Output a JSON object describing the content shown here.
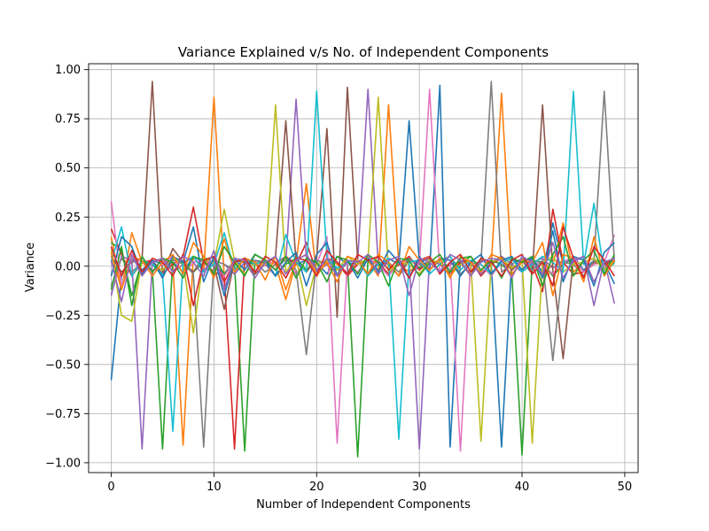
{
  "chart_data": {
    "type": "line",
    "title": "Variance Explained v/s No. of Independent Components",
    "xlabel": "Number of Independent Components",
    "ylabel": "Variance",
    "xlim": [
      -2.2,
      51.3
    ],
    "ylim": [
      -1.05,
      1.03
    ],
    "xticks": [
      0,
      10,
      20,
      30,
      40,
      50
    ],
    "yticks": [
      1.0,
      0.75,
      0.5,
      0.25,
      0.0,
      -0.25,
      -0.5,
      -0.75,
      -1.0
    ],
    "ytick_labels": [
      "1.00",
      "0.75",
      "0.50",
      "0.25",
      "0.00",
      "−0.25",
      "−0.50",
      "−0.75",
      "−1.00"
    ],
    "grid": true,
    "colors": [
      "#1f77b4",
      "#ff7f0e",
      "#2ca02c",
      "#d62728",
      "#9467bd",
      "#8c564b",
      "#e377c2",
      "#7f7f7f",
      "#bcbd22",
      "#17becf"
    ],
    "x": [
      0,
      1,
      2,
      3,
      4,
      5,
      6,
      7,
      8,
      9,
      10,
      11,
      12,
      13,
      14,
      15,
      16,
      17,
      18,
      19,
      20,
      21,
      22,
      23,
      24,
      25,
      26,
      27,
      28,
      29,
      30,
      31,
      32,
      33,
      34,
      35,
      36,
      37,
      38,
      39,
      40,
      41,
      42,
      43,
      44,
      45,
      46,
      47,
      48,
      49
    ],
    "series": [
      {
        "values": [
          -0.58,
          -0.05,
          0.04,
          -0.02,
          0.03,
          0.01,
          0.02,
          -0.03,
          0.05,
          0.02,
          0.01,
          -0.04,
          0.03,
          0.02,
          0.01,
          0.03,
          -0.02,
          0.04,
          0.01,
          0.03,
          0.02,
          -0.04,
          0.05,
          0.01,
          0.02,
          0.03,
          -0.02,
          0.04,
          0.01,
          0.74,
          0.02,
          -0.03,
          0.92,
          -0.92,
          0.03,
          0.02,
          -0.04,
          0.01,
          -0.92,
          0.03,
          0.02,
          0.04,
          -0.03,
          0.22,
          0.01,
          0.05,
          -0.02,
          0.03,
          0.02,
          -0.09
        ]
      },
      {
        "values": [
          0.15,
          -0.12,
          0.17,
          0.02,
          -0.03,
          0.04,
          0.01,
          -0.91,
          0.05,
          -0.03,
          0.86,
          -0.05,
          0.03,
          0.02,
          -0.04,
          0.03,
          0.01,
          -0.17,
          0.02,
          0.42,
          -0.05,
          0.03,
          0.01,
          -0.04,
          0.02,
          0.03,
          -0.05,
          0.82,
          0.01,
          -0.03,
          0.02,
          0.04,
          -0.03,
          0.01,
          0.02,
          -0.05,
          0.03,
          0.01,
          0.88,
          -0.04,
          0.02,
          0.03,
          -0.05,
          0.01,
          0.22,
          -0.03,
          0.02,
          0.04,
          -0.01,
          0.05
        ]
      },
      {
        "values": [
          0.12,
          0.08,
          -0.15,
          0.03,
          -0.02,
          -0.93,
          0.04,
          0.01,
          -0.03,
          0.02,
          0.05,
          -0.04,
          0.01,
          -0.94,
          0.03,
          0.02,
          -0.05,
          0.01,
          0.04,
          -0.02,
          0.03,
          0.01,
          -0.04,
          0.02,
          -0.97,
          0.03,
          0.01,
          -0.05,
          0.02,
          0.04,
          -0.01,
          0.03,
          0.02,
          -0.04,
          0.01,
          0.05,
          -0.02,
          0.03,
          0.01,
          -0.04,
          -0.96,
          0.03,
          0.02,
          -0.05,
          0.01,
          0.04,
          -0.03,
          0.02,
          0.03,
          0.01
        ]
      },
      {
        "values": [
          0.19,
          0.06,
          -0.05,
          0.02,
          0.03,
          -0.04,
          0.01,
          0.05,
          0.3,
          0.02,
          -0.03,
          -0.05,
          -0.93,
          0.04,
          0.01,
          0.03,
          -0.02,
          0.05,
          0.01,
          0.12,
          -0.03,
          0.04,
          0.02,
          -0.05,
          0.01,
          0.03,
          0.02,
          -0.04,
          0.01,
          0.05,
          -0.02,
          0.03,
          0.01,
          -0.04,
          0.02,
          0.03,
          -0.05,
          0.01,
          0.04,
          -0.02,
          0.03,
          0.01,
          -0.13,
          0.29,
          0.02,
          -0.04,
          -0.03,
          0.01,
          0.02,
          0.03
        ]
      },
      {
        "values": [
          -0.15,
          0.05,
          0.03,
          -0.93,
          0.02,
          0.04,
          -0.03,
          0.01,
          0.05,
          -0.02,
          0.03,
          0.01,
          -0.04,
          0.02,
          0.03,
          0.01,
          -0.05,
          0.02,
          0.85,
          0.04,
          -0.03,
          0.01,
          0.02,
          -0.04,
          0.03,
          0.9,
          0.01,
          -0.05,
          0.02,
          0.03,
          -0.93,
          0.04,
          0.01,
          -0.02,
          0.03,
          0.01,
          -0.04,
          0.02,
          0.05,
          0.01,
          -0.03,
          0.02,
          0.04,
          -0.01,
          0.03,
          0.02,
          0.05,
          -0.2,
          0.03,
          -0.19
        ]
      },
      {
        "values": [
          0.05,
          -0.03,
          0.02,
          0.04,
          0.94,
          -0.04,
          0.09,
          0.02,
          -0.03,
          0.05,
          0.01,
          -0.22,
          0.03,
          0.02,
          -0.04,
          0.01,
          0.05,
          0.74,
          0.02,
          -0.03,
          0.04,
          0.7,
          -0.26,
          0.91,
          0.03,
          -0.04,
          0.02,
          0.01,
          -0.05,
          0.03,
          0.02,
          0.04,
          -0.03,
          0.01,
          0.02,
          -0.04,
          0.03,
          0.01,
          0.05,
          -0.02,
          0.03,
          -0.04,
          0.82,
          -0.02,
          -0.47,
          0.04,
          -0.03,
          0.02,
          0.01,
          0.03
        ]
      },
      {
        "values": [
          0.33,
          -0.1,
          0.04,
          0.02,
          -0.03,
          0.01,
          0.05,
          -0.04,
          0.02,
          0.03,
          0.01,
          -0.05,
          0.02,
          0.04,
          -0.03,
          0.01,
          0.02,
          0.05,
          -0.04,
          0.03,
          0.01,
          0.15,
          -0.9,
          0.02,
          -0.03,
          0.04,
          0.01,
          -0.05,
          0.02,
          0.03,
          0.01,
          0.9,
          -0.04,
          0.02,
          -0.94,
          0.03,
          0.01,
          -0.05,
          0.02,
          0.04,
          -0.02,
          0.03,
          0.01,
          -0.04,
          0.02,
          0.05,
          -0.03,
          0.01,
          0.02,
          0.16
        ]
      },
      {
        "values": [
          -0.1,
          0.04,
          -0.03,
          0.02,
          0.01,
          -0.05,
          0.03,
          0.02,
          -0.04,
          -0.92,
          0.03,
          0.01,
          -0.02,
          0.04,
          0.02,
          -0.03,
          0.01,
          0.05,
          -0.02,
          -0.45,
          0.03,
          0.01,
          -0.04,
          0.02,
          0.03,
          -0.05,
          0.01,
          0.02,
          -0.03,
          0.04,
          0.01,
          -0.02,
          0.03,
          0.05,
          -0.04,
          0.01,
          0.02,
          0.94,
          -0.03,
          0.01,
          0.04,
          -0.02,
          0.03,
          -0.48,
          0.02,
          0.01,
          -0.05,
          0.03,
          0.89,
          0.02
        ]
      },
      {
        "values": [
          0.08,
          -0.25,
          -0.28,
          0.03,
          0.01,
          -0.02,
          0.04,
          0.02,
          -0.34,
          0.05,
          0.01,
          0.29,
          0.03,
          -0.04,
          0.02,
          0.01,
          0.82,
          -0.03,
          0.04,
          -0.2,
          0.01,
          0.03,
          -0.02,
          0.05,
          0.01,
          0.04,
          0.86,
          -0.03,
          0.02,
          0.01,
          -0.04,
          0.03,
          0.02,
          -0.05,
          0.01,
          0.03,
          -0.89,
          0.02,
          0.04,
          -0.01,
          0.03,
          -0.9,
          0.02,
          0.05,
          -0.03,
          0.01,
          0.02,
          0.04,
          -0.02,
          0.03
        ]
      },
      {
        "values": [
          0.02,
          0.2,
          -0.05,
          0.03,
          0.01,
          -0.04,
          -0.84,
          0.02,
          0.05,
          -0.03,
          0.01,
          0.17,
          -0.02,
          0.04,
          0.01,
          0.03,
          -0.05,
          0.16,
          0.02,
          -0.03,
          0.89,
          0.04,
          -0.01,
          0.02,
          0.03,
          -0.05,
          0.01,
          0.04,
          -0.88,
          0.02,
          0.03,
          -0.04,
          0.01,
          0.05,
          -0.02,
          0.03,
          0.01,
          -0.04,
          0.02,
          0.04,
          -0.03,
          0.01,
          0.05,
          0.02,
          -0.03,
          0.89,
          0.01,
          0.32,
          -0.04,
          0.02
        ]
      },
      {
        "values": [
          -0.05,
          0.15,
          0.1,
          -0.04,
          0.03,
          -0.06,
          0.05,
          0.02,
          0.2,
          -0.08,
          0.05,
          -0.15,
          0.04,
          -0.02,
          0.06,
          0.03,
          -0.05,
          0.02,
          0.07,
          -0.1,
          0.06,
          0.12,
          -0.05,
          0.03,
          -0.06,
          0.04,
          -0.03,
          0.08,
          0.02,
          -0.06,
          0.05,
          -0.02,
          0.04,
          0.03,
          -0.05,
          0.02,
          0.06,
          -0.04,
          0.03,
          0.05,
          -0.02,
          0.04,
          -0.06,
          0.18,
          -0.08,
          0.05,
          0.03,
          -0.1,
          0.07,
          0.12
        ]
      },
      {
        "values": [
          0.07,
          -0.12,
          0.05,
          0.03,
          -0.05,
          0.02,
          0.06,
          -0.04,
          0.12,
          0.05,
          -0.06,
          0.14,
          -0.03,
          0.04,
          0.02,
          -0.07,
          0.05,
          -0.12,
          0.03,
          0.06,
          -0.04,
          0.02,
          -0.08,
          0.05,
          0.03,
          -0.04,
          0.06,
          0.02,
          -0.05,
          0.1,
          0.03,
          -0.02,
          0.04,
          -0.06,
          0.05,
          0.02,
          -0.03,
          0.06,
          0.04,
          -0.05,
          0.03,
          0.02,
          0.12,
          -0.15,
          0.06,
          0.04,
          -0.08,
          0.15,
          -0.05,
          0.03
        ]
      },
      {
        "values": [
          -0.12,
          0.1,
          -0.2,
          0.05,
          -0.03,
          0.04,
          0.02,
          -0.06,
          0.05,
          0.03,
          -0.04,
          0.1,
          0.02,
          -0.05,
          0.06,
          0.03,
          -0.02,
          0.05,
          -0.06,
          0.04,
          0.02,
          -0.08,
          0.05,
          0.03,
          -0.04,
          0.06,
          0.02,
          -0.1,
          0.04,
          0.03,
          -0.05,
          0.02,
          0.06,
          -0.03,
          0.04,
          0.05,
          -0.02,
          0.03,
          -0.06,
          0.04,
          0.02,
          0.05,
          -0.1,
          0.06,
          0.15,
          -0.05,
          0.03,
          0.08,
          -0.04,
          0.06
        ]
      },
      {
        "values": [
          0.1,
          -0.05,
          0.08,
          -0.03,
          0.04,
          0.02,
          -0.05,
          0.06,
          -0.2,
          0.03,
          0.05,
          -0.08,
          0.02,
          0.04,
          -0.03,
          0.05,
          0.02,
          -0.06,
          0.04,
          0.03,
          -0.05,
          0.08,
          0.02,
          -0.04,
          0.06,
          0.03,
          0.05,
          -0.02,
          0.04,
          -0.06,
          0.03,
          0.05,
          -0.04,
          0.02,
          0.06,
          -0.03,
          0.04,
          0.02,
          -0.05,
          0.03,
          0.06,
          -0.04,
          0.02,
          -0.1,
          0.2,
          0.04,
          -0.06,
          0.1,
          0.03,
          -0.05
        ]
      },
      {
        "values": [
          0.03,
          -0.18,
          0.06,
          -0.05,
          0.02,
          0.04,
          -0.03,
          0.05,
          0.02,
          -0.05,
          0.08,
          -0.12,
          0.04,
          0.03,
          -0.06,
          0.02,
          0.05,
          -0.04,
          0.03,
          0.06,
          -0.02,
          0.04,
          -0.05,
          0.03,
          0.02,
          0.06,
          -0.04,
          0.03,
          0.05,
          -0.15,
          0.04,
          0.02,
          -0.03,
          0.06,
          0.03,
          -0.05,
          0.02,
          0.04,
          0.03,
          -0.06,
          0.05,
          0.02,
          -0.04,
          0.12,
          -0.06,
          0.03,
          0.05,
          -0.08,
          0.02,
          0.04
        ]
      }
    ]
  }
}
